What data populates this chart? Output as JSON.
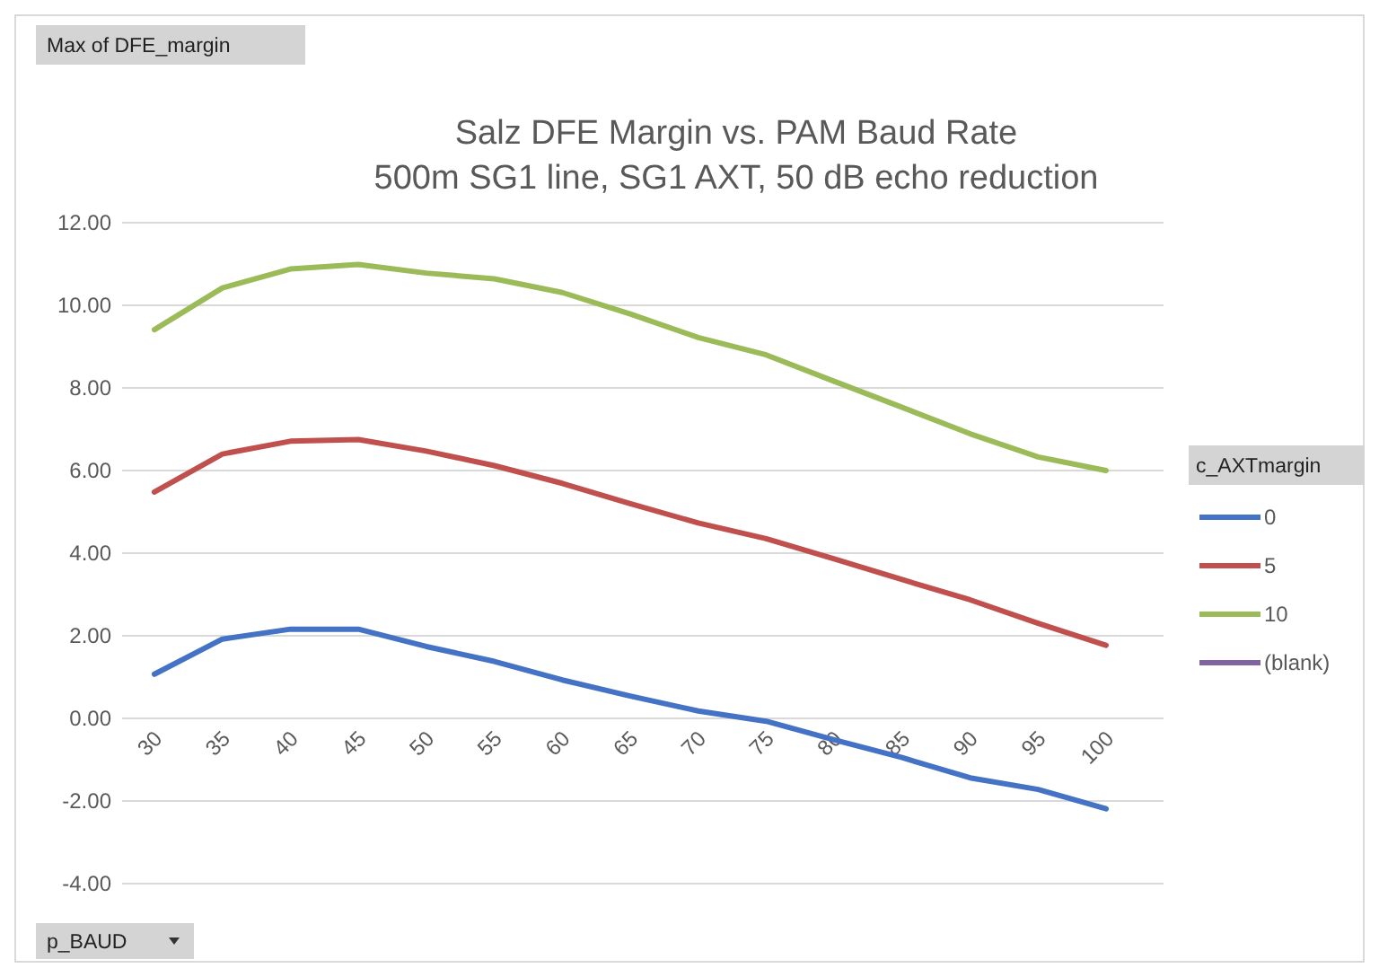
{
  "chart_data": {
    "type": "line",
    "title": "Salz DFE Margin vs. PAM Baud Rate",
    "subtitle": "500m SG1 line, SG1 AXT, 50 dB echo reduction",
    "annotations": [
      "Max of DFE_margin"
    ],
    "xlabel": "p_BAUD",
    "legend_title": "c_AXTmargin",
    "categories": [
      "30",
      "35",
      "40",
      "45",
      "50",
      "55",
      "60",
      "65",
      "70",
      "75",
      "80",
      "85",
      "90",
      "95",
      "100"
    ],
    "series": [
      {
        "name": "0",
        "color": "#4472c4",
        "values": [
          1.07,
          1.92,
          2.16,
          2.16,
          1.74,
          1.38,
          0.93,
          0.54,
          0.18,
          -0.07,
          -0.52,
          -0.95,
          -1.44,
          -1.72,
          -2.19
        ]
      },
      {
        "name": "5",
        "color": "#c0504d",
        "values": [
          5.48,
          6.4,
          6.71,
          6.75,
          6.47,
          6.12,
          5.69,
          5.2,
          4.73,
          4.35,
          3.86,
          3.36,
          2.87,
          2.3,
          1.77
        ]
      },
      {
        "name": "10",
        "color": "#9bbb59",
        "values": [
          9.41,
          10.42,
          10.88,
          10.99,
          10.78,
          10.64,
          10.31,
          9.79,
          9.22,
          8.8,
          8.16,
          7.53,
          6.89,
          6.33,
          6.0
        ]
      },
      {
        "name": "(blank)",
        "color": "#8064a2",
        "values": [
          null,
          null,
          null,
          null,
          null,
          null,
          null,
          null,
          null,
          null,
          null,
          null,
          null,
          null,
          null
        ]
      }
    ],
    "ylim": [
      -4,
      12
    ],
    "yticks": [
      {
        "value": -4,
        "label": "-4.00"
      },
      {
        "value": -2,
        "label": "-2.00"
      },
      {
        "value": 0,
        "label": "0.00"
      },
      {
        "value": 2,
        "label": "2.00"
      },
      {
        "value": 4,
        "label": "4.00"
      },
      {
        "value": 6,
        "label": "6.00"
      },
      {
        "value": 8,
        "label": "8.00"
      },
      {
        "value": 10,
        "label": "10.00"
      },
      {
        "value": 12,
        "label": "12.00"
      }
    ],
    "grid": "y",
    "legend": "right",
    "marker": "none",
    "line_style": "solid"
  }
}
